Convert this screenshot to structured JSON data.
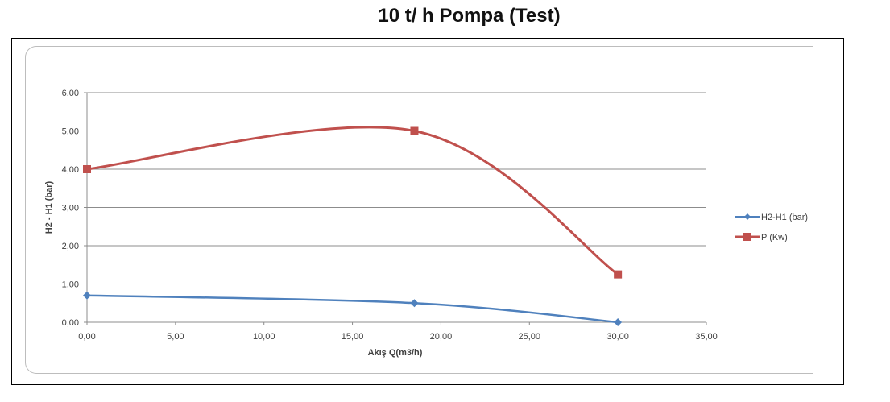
{
  "page": {
    "title": "10 t/ h Pompa (Test)"
  },
  "chart_data": {
    "type": "line",
    "title": "10 t/ h Pompa (Test)",
    "xlabel": "Akış Q(m3/h)",
    "ylabel": "H2 - H1 (bar)",
    "xlim": [
      0,
      35
    ],
    "ylim": [
      0,
      6
    ],
    "x_ticks": [
      "0,00",
      "5,00",
      "10,00",
      "15,00",
      "20,00",
      "25,00",
      "30,00",
      "35,00"
    ],
    "y_ticks": [
      "0,00",
      "1,00",
      "2,00",
      "3,00",
      "4,00",
      "5,00",
      "6,00"
    ],
    "grid": "horizontal",
    "smooth": true,
    "legend_position": "right",
    "series": [
      {
        "name": "H2-H1 (bar)",
        "color": "#4f81bd",
        "marker": "diamond",
        "x": [
          0,
          18.5,
          30
        ],
        "y": [
          0.7,
          0.5,
          0.0
        ]
      },
      {
        "name": "P (Kw)",
        "color": "#c0504d",
        "marker": "square",
        "x": [
          0,
          18.5,
          30
        ],
        "y": [
          4.0,
          5.0,
          1.25
        ]
      }
    ]
  }
}
